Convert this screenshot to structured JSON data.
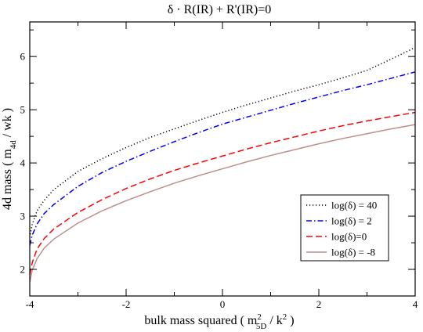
{
  "chart_data": {
    "type": "line",
    "title": "δ · R(IR) + R'(IR)=0",
    "xlabel": {
      "prefix": "bulk mass squared ( m",
      "sup1": "2",
      "sub1": "5D",
      "mid": " / k",
      "sup2": "2",
      "suffix": " )"
    },
    "ylabel": {
      "prefix": "4d mass  ( m",
      "sub": "4d",
      "suffix": " / wk )"
    },
    "xlim": [
      -4,
      4
    ],
    "ylim": [
      1.5,
      6.65
    ],
    "x_ticks": [
      -4,
      -2,
      0,
      2,
      4
    ],
    "x_tick_labels": [
      "-4",
      "-2",
      "0",
      "2",
      "4"
    ],
    "y_ticks": [
      2,
      3,
      4,
      5,
      6
    ],
    "y_tick_labels": [
      "2",
      "3",
      "4",
      "5",
      "6"
    ],
    "x_minor_step": 1,
    "y_minor_step": 0.5,
    "grid": false,
    "legend_position": "lower-right",
    "series": [
      {
        "name": "log(δ) = 40",
        "color": "#000000",
        "dash": "dotted",
        "x": [
          -4.0,
          -3.95,
          -3.85,
          -3.7,
          -3.5,
          -3.0,
          -2.5,
          -2.0,
          -1.5,
          -1.0,
          -0.5,
          0.0,
          0.5,
          1.0,
          1.5,
          2.0,
          2.5,
          3.0,
          3.5,
          4.0
        ],
        "y": [
          2.6,
          2.84,
          3.1,
          3.3,
          3.5,
          3.84,
          4.08,
          4.29,
          4.48,
          4.64,
          4.8,
          4.95,
          5.09,
          5.22,
          5.35,
          5.47,
          5.6,
          5.74,
          5.95,
          6.17
        ]
      },
      {
        "name": "log(δ) = 2",
        "color": "#0000ff",
        "dash": "dashdot",
        "x": [
          -4.0,
          -3.95,
          -3.85,
          -3.7,
          -3.5,
          -3.0,
          -2.5,
          -2.0,
          -1.5,
          -1.0,
          -0.5,
          0.0,
          0.5,
          1.0,
          1.5,
          2.0,
          2.5,
          3.0,
          3.5,
          4.0
        ],
        "y": [
          2.45,
          2.64,
          2.85,
          3.05,
          3.22,
          3.56,
          3.82,
          4.03,
          4.22,
          4.4,
          4.57,
          4.73,
          4.86,
          4.99,
          5.12,
          5.24,
          5.36,
          5.47,
          5.59,
          5.71
        ]
      },
      {
        "name": "log(δ)=0",
        "color": "#ff0000",
        "dash": "dashed",
        "x": [
          -4.0,
          -3.95,
          -3.85,
          -3.7,
          -3.5,
          -3.0,
          -2.5,
          -2.0,
          -1.5,
          -1.0,
          -0.5,
          0.0,
          0.5,
          1.0,
          1.5,
          2.0,
          2.5,
          3.0,
          3.5,
          4.0
        ],
        "y": [
          1.9,
          2.12,
          2.38,
          2.58,
          2.76,
          3.07,
          3.31,
          3.52,
          3.7,
          3.86,
          4.0,
          4.13,
          4.26,
          4.38,
          4.49,
          4.6,
          4.7,
          4.79,
          4.87,
          4.95
        ]
      },
      {
        "name": "log(δ) = -8",
        "color": "#bc8f8f",
        "dash": "solid",
        "x": [
          -4.0,
          -3.95,
          -3.85,
          -3.7,
          -3.5,
          -3.0,
          -2.5,
          -2.0,
          -1.5,
          -1.0,
          -0.5,
          0.0,
          0.5,
          1.0,
          1.5,
          2.0,
          2.5,
          3.0,
          3.5,
          4.0
        ],
        "y": [
          1.76,
          1.98,
          2.2,
          2.4,
          2.57,
          2.87,
          3.1,
          3.29,
          3.46,
          3.62,
          3.76,
          3.89,
          4.02,
          4.14,
          4.25,
          4.36,
          4.46,
          4.55,
          4.64,
          4.72
        ]
      }
    ]
  }
}
